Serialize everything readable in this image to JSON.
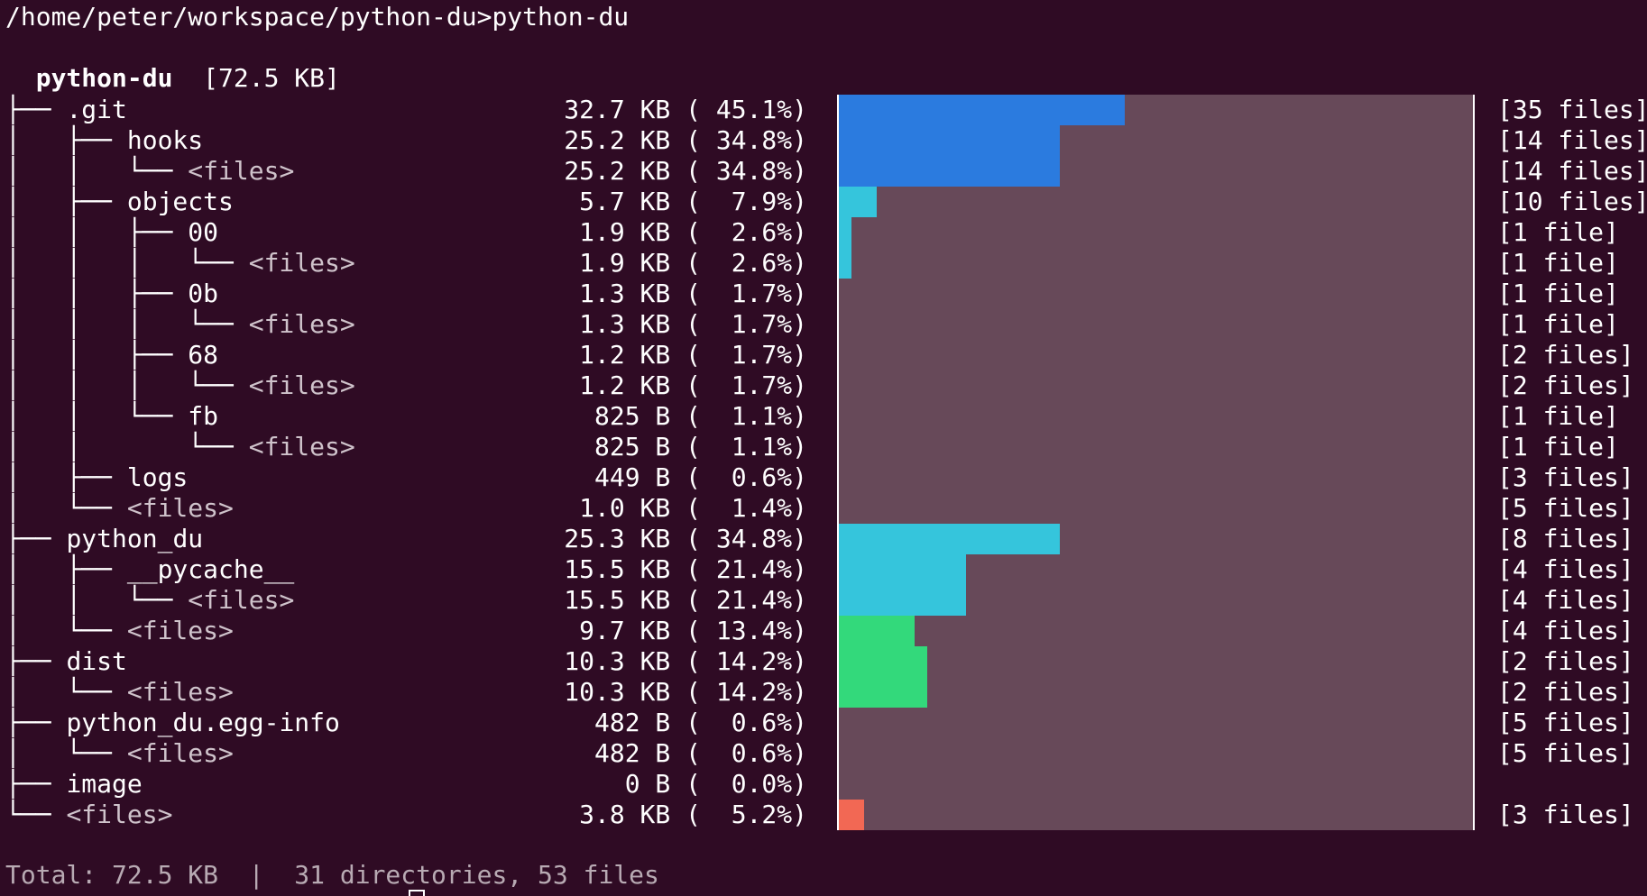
{
  "prompt": "/home/peter/workspace/python-du>python-du",
  "header": {
    "root_name": "python-du",
    "root_size": "[72.5 KB]"
  },
  "colors": {
    "background": "#2f0b24",
    "bar_track": "#674959",
    "blue": "#2b7bdf",
    "cyan": "#35c5dc",
    "green": "#33d97b",
    "red": "#f26854"
  },
  "rows": [
    {
      "prefix": "├── ",
      "name": ".git",
      "size": "32.7 KB ( 45.1%)",
      "count": "[35 files]",
      "fraction": 0.451,
      "color": "#2b7bdf",
      "files": false
    },
    {
      "prefix": "│   ├── ",
      "name": "hooks",
      "size": "25.2 KB ( 34.8%)",
      "count": "[14 files]",
      "fraction": 0.348,
      "color": "#2b7bdf",
      "files": false
    },
    {
      "prefix": "│   │   └── ",
      "name": "<files>",
      "size": "25.2 KB ( 34.8%)",
      "count": "[14 files]",
      "fraction": 0.348,
      "color": "#2b7bdf",
      "files": true
    },
    {
      "prefix": "│   ├── ",
      "name": "objects",
      "size": "5.7 KB (  7.9%)",
      "count": "[10 files]",
      "fraction": 0.06,
      "color": "#35c5dc",
      "files": false
    },
    {
      "prefix": "│   │   ├── ",
      "name": "00",
      "size": "1.9 KB (  2.6%)",
      "count": "[1 file]",
      "fraction": 0.02,
      "color": "#35c5dc",
      "files": false
    },
    {
      "prefix": "│   │   │   └── ",
      "name": "<files>",
      "size": "1.9 KB (  2.6%)",
      "count": "[1 file]",
      "fraction": 0.02,
      "color": "#35c5dc",
      "files": true
    },
    {
      "prefix": "│   │   ├── ",
      "name": "0b",
      "size": "1.3 KB (  1.7%)",
      "count": "[1 file]",
      "fraction": 0,
      "color": "#35c5dc",
      "files": false
    },
    {
      "prefix": "│   │   │   └── ",
      "name": "<files>",
      "size": "1.3 KB (  1.7%)",
      "count": "[1 file]",
      "fraction": 0,
      "color": "#35c5dc",
      "files": true
    },
    {
      "prefix": "│   │   ├── ",
      "name": "68",
      "size": "1.2 KB (  1.7%)",
      "count": "[2 files]",
      "fraction": 0,
      "color": "#35c5dc",
      "files": false
    },
    {
      "prefix": "│   │   │   └── ",
      "name": "<files>",
      "size": "1.2 KB (  1.7%)",
      "count": "[2 files]",
      "fraction": 0,
      "color": "#35c5dc",
      "files": true
    },
    {
      "prefix": "│   │   └── ",
      "name": "fb",
      "size": "825 B (  1.1%)",
      "count": "[1 file]",
      "fraction": 0,
      "color": "#35c5dc",
      "files": false
    },
    {
      "prefix": "│   │       └── ",
      "name": "<files>",
      "size": "825 B (  1.1%)",
      "count": "[1 file]",
      "fraction": 0,
      "color": "#35c5dc",
      "files": true
    },
    {
      "prefix": "│   ├── ",
      "name": "logs",
      "size": "449 B (  0.6%)",
      "count": "[3 files]",
      "fraction": 0,
      "color": "#35c5dc",
      "files": false
    },
    {
      "prefix": "│   └── ",
      "name": "<files>",
      "size": "1.0 KB (  1.4%)",
      "count": "[5 files]",
      "fraction": 0,
      "color": "#35c5dc",
      "files": true
    },
    {
      "prefix": "├── ",
      "name": "python_du",
      "size": "25.3 KB ( 34.8%)",
      "count": "[8 files]",
      "fraction": 0.348,
      "color": "#35c5dc",
      "files": false
    },
    {
      "prefix": "│   ├── ",
      "name": "__pycache__",
      "size": "15.5 KB ( 21.4%)",
      "count": "[4 files]",
      "fraction": 0.2,
      "color": "#35c5dc",
      "files": false
    },
    {
      "prefix": "│   │   └── ",
      "name": "<files>",
      "size": "15.5 KB ( 21.4%)",
      "count": "[4 files]",
      "fraction": 0.2,
      "color": "#35c5dc",
      "files": true
    },
    {
      "prefix": "│   └── ",
      "name": "<files>",
      "size": "9.7 KB ( 13.4%)",
      "count": "[4 files]",
      "fraction": 0.12,
      "color": "#33d97b",
      "files": true
    },
    {
      "prefix": "├── ",
      "name": "dist",
      "size": "10.3 KB ( 14.2%)",
      "count": "[2 files]",
      "fraction": 0.14,
      "color": "#33d97b",
      "files": false
    },
    {
      "prefix": "│   └── ",
      "name": "<files>",
      "size": "10.3 KB ( 14.2%)",
      "count": "[2 files]",
      "fraction": 0.14,
      "color": "#33d97b",
      "files": true
    },
    {
      "prefix": "├── ",
      "name": "python_du.egg-info",
      "size": "482 B (  0.6%)",
      "count": "[5 files]",
      "fraction": 0,
      "color": "#33d97b",
      "files": false
    },
    {
      "prefix": "│   └── ",
      "name": "<files>",
      "size": "482 B (  0.6%)",
      "count": "[5 files]",
      "fraction": 0,
      "color": "#33d97b",
      "files": true
    },
    {
      "prefix": "├── ",
      "name": "image",
      "size": "0 B (  0.0%)",
      "count": "",
      "fraction": 0,
      "color": "#33d97b",
      "files": false
    },
    {
      "prefix": "└── ",
      "name": "<files>",
      "size": "3.8 KB (  5.2%)",
      "count": "[3 files]",
      "fraction": 0.04,
      "color": "#f26854",
      "files": true
    }
  ],
  "footer": "Total: 72.5 KB  |  31 directories, 53 files"
}
